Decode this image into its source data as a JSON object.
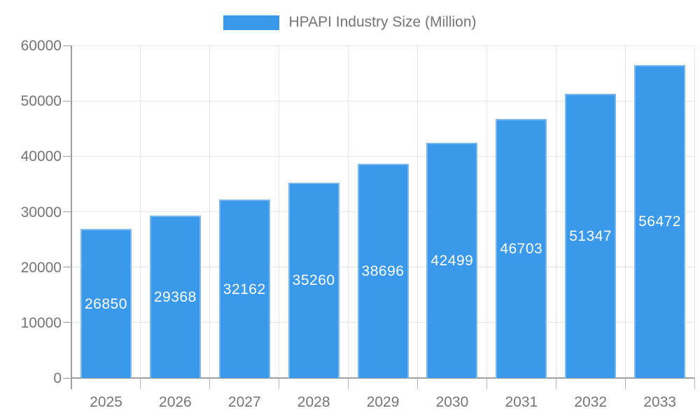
{
  "legend": {
    "label": "HPAPI Industry Size (Million)",
    "swatch_color": "#3B99EC"
  },
  "chart_data": {
    "type": "bar",
    "title": "HPAPI Industry Size (Million)",
    "categories": [
      "2025",
      "2026",
      "2027",
      "2028",
      "2029",
      "2030",
      "2031",
      "2032",
      "2033"
    ],
    "values": [
      26850,
      29368,
      32162,
      35260,
      38696,
      42499,
      46703,
      51347,
      56472
    ],
    "xlabel": "",
    "ylabel": "",
    "ylim": [
      0,
      60000
    ],
    "yticks": [
      0,
      10000,
      20000,
      30000,
      40000,
      50000,
      60000
    ],
    "grid": true,
    "legend_position": "top",
    "bar_color": "#3B99EC",
    "bar_border_color": "#7CB9F1",
    "value_label_color": "#FFFFFF",
    "axis_color": "#9E9E9E",
    "grid_color": "#E6E6E6",
    "tick_label_color": "#757575"
  }
}
